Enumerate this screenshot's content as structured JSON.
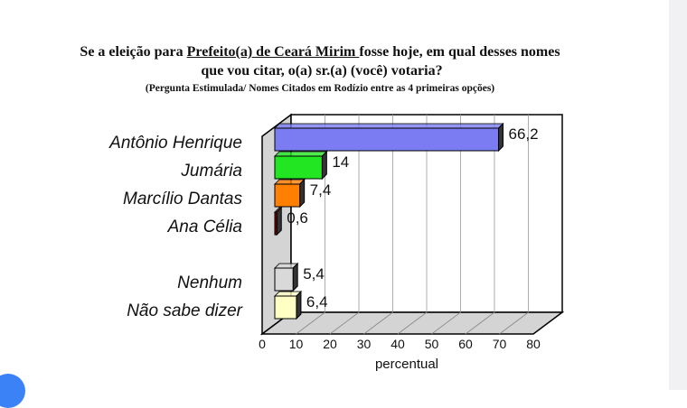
{
  "title": {
    "line1_pre": "Se a eleição para ",
    "line1_underlined": "Prefeito(a) de Ceará Mirim ",
    "line1_post": "fosse hoje, em qual desses nomes",
    "line2": "que vou citar, o(a) sr.(a) (você) votaria?",
    "subtitle": "(Pergunta Estimulada/ Nomes Citados em Rodízio entre as 4 primeiras opções)"
  },
  "chart_data": {
    "type": "bar",
    "orientation": "horizontal",
    "style": "3d",
    "categories": [
      "Antônio Henrique",
      "Jumária",
      "Marcílio Dantas",
      "Ana Célia",
      "Nenhum",
      "Não sabe dizer"
    ],
    "values": [
      66.2,
      14,
      7.4,
      0.6,
      5.4,
      6.4
    ],
    "value_labels": [
      "66,2",
      "14",
      "7,4",
      "0,6",
      "5,4",
      "6,4"
    ],
    "colors": [
      "#7b7bf2",
      "#22e622",
      "#ff7f00",
      "#800000",
      "#d9d9d9",
      "#ffffc4"
    ],
    "xlabel": "percentual",
    "xlim": [
      0,
      80
    ],
    "xticks": [
      "0",
      "10",
      "20",
      "30",
      "40",
      "50",
      "60",
      "70",
      "80"
    ],
    "grid": true
  }
}
